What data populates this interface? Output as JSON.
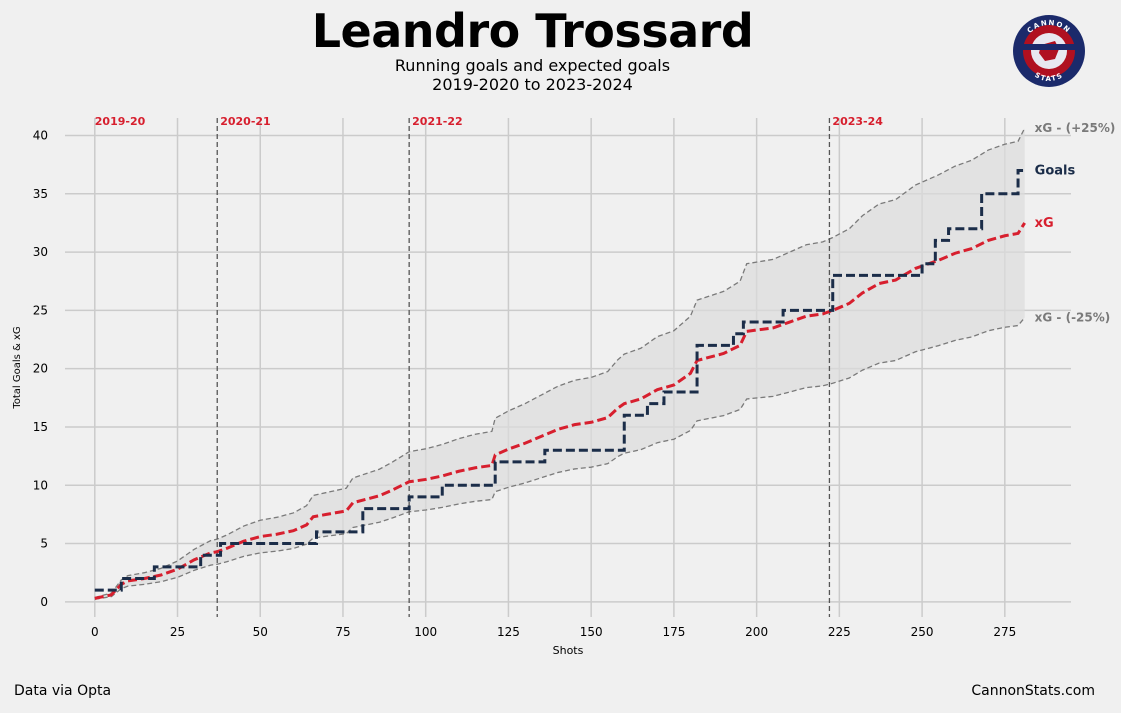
{
  "header": {
    "title": "Leandro Trossard",
    "subtitle_line1": "Running goals and expected goals",
    "subtitle_line2": "2019-2020 to 2023-2024"
  },
  "logo": {
    "top_text": "CANNON",
    "bottom_text": "STATS",
    "colors": {
      "ring": "#1b2a6b",
      "inner": "#b01020",
      "badge": "#e8e8f0"
    }
  },
  "footer": {
    "left": "Data via Opta",
    "right": "CannonStats.com"
  },
  "colors": {
    "goals": "#1b2d49",
    "xg": "#d71f2e",
    "band": "#dcdcdc",
    "band_line": "#7a7a7a",
    "season": "#d71f2e",
    "grid": "#cbcbcb",
    "background": "#f0f0f0"
  },
  "chart_data": {
    "type": "line",
    "xlabel": "Shots",
    "ylabel": "Total Goals & xG",
    "xlim": [
      -9,
      295
    ],
    "ylim": [
      -1.3,
      41.5
    ],
    "xticks": [
      0,
      25,
      50,
      75,
      100,
      125,
      150,
      175,
      200,
      225,
      250,
      275
    ],
    "yticks": [
      0,
      5,
      10,
      15,
      20,
      25,
      30,
      35,
      40
    ],
    "grid": true,
    "seasons": [
      {
        "label": "2019-20",
        "start_shot": 0,
        "divider": false
      },
      {
        "label": "2020-21",
        "start_shot": 37,
        "divider": true
      },
      {
        "label": "2021-22",
        "start_shot": 95,
        "divider": true
      },
      {
        "label": "2023-24",
        "start_shot": 222,
        "divider": true
      }
    ],
    "series": [
      {
        "name": "Goals",
        "step": true,
        "points": [
          [
            0,
            1
          ],
          [
            6,
            1
          ],
          [
            8,
            2
          ],
          [
            14,
            2
          ],
          [
            18,
            3
          ],
          [
            29,
            3
          ],
          [
            32,
            4
          ],
          [
            37,
            4
          ],
          [
            38,
            5
          ],
          [
            66,
            5
          ],
          [
            67,
            6
          ],
          [
            77,
            6
          ],
          [
            81,
            8
          ],
          [
            94,
            8
          ],
          [
            95,
            9
          ],
          [
            104,
            9
          ],
          [
            105,
            10
          ],
          [
            120,
            10
          ],
          [
            121,
            12
          ],
          [
            135,
            12
          ],
          [
            136,
            13
          ],
          [
            159,
            13
          ],
          [
            160,
            16
          ],
          [
            167,
            17
          ],
          [
            172,
            18
          ],
          [
            180,
            18
          ],
          [
            182,
            22
          ],
          [
            190,
            22
          ],
          [
            193,
            23
          ],
          [
            196,
            24
          ],
          [
            206,
            24
          ],
          [
            208,
            25
          ],
          [
            221,
            25
          ],
          [
            223,
            28
          ],
          [
            248,
            28
          ],
          [
            250,
            29
          ],
          [
            254,
            31
          ],
          [
            258,
            32
          ],
          [
            265,
            32
          ],
          [
            268,
            35
          ],
          [
            278,
            35
          ],
          [
            279,
            37
          ],
          [
            281,
            37
          ]
        ]
      },
      {
        "name": "xG",
        "step": false,
        "points": [
          [
            0,
            0.3
          ],
          [
            5,
            0.6
          ],
          [
            8,
            1.5
          ],
          [
            10,
            1.8
          ],
          [
            15,
            2.0
          ],
          [
            20,
            2.3
          ],
          [
            25,
            2.8
          ],
          [
            30,
            3.6
          ],
          [
            35,
            4.2
          ],
          [
            37,
            4.3
          ],
          [
            40,
            4.6
          ],
          [
            45,
            5.2
          ],
          [
            50,
            5.6
          ],
          [
            55,
            5.8
          ],
          [
            60,
            6.1
          ],
          [
            64,
            6.6
          ],
          [
            66,
            7.3
          ],
          [
            70,
            7.5
          ],
          [
            76,
            7.8
          ],
          [
            78,
            8.5
          ],
          [
            82,
            8.8
          ],
          [
            86,
            9.1
          ],
          [
            90,
            9.6
          ],
          [
            95,
            10.3
          ],
          [
            100,
            10.5
          ],
          [
            105,
            10.8
          ],
          [
            110,
            11.2
          ],
          [
            115,
            11.5
          ],
          [
            120,
            11.7
          ],
          [
            121,
            12.6
          ],
          [
            125,
            13.1
          ],
          [
            130,
            13.6
          ],
          [
            135,
            14.2
          ],
          [
            140,
            14.8
          ],
          [
            145,
            15.2
          ],
          [
            150,
            15.4
          ],
          [
            155,
            15.8
          ],
          [
            158,
            16.6
          ],
          [
            160,
            17.0
          ],
          [
            165,
            17.4
          ],
          [
            170,
            18.2
          ],
          [
            175,
            18.6
          ],
          [
            180,
            19.6
          ],
          [
            182,
            20.7
          ],
          [
            190,
            21.3
          ],
          [
            195,
            22.0
          ],
          [
            197,
            23.2
          ],
          [
            205,
            23.5
          ],
          [
            210,
            24.0
          ],
          [
            215,
            24.5
          ],
          [
            220,
            24.7
          ],
          [
            223,
            25.0
          ],
          [
            228,
            25.6
          ],
          [
            232,
            26.5
          ],
          [
            237,
            27.3
          ],
          [
            242,
            27.6
          ],
          [
            248,
            28.6
          ],
          [
            255,
            29.3
          ],
          [
            260,
            29.9
          ],
          [
            265,
            30.3
          ],
          [
            270,
            31.0
          ],
          [
            275,
            31.4
          ],
          [
            279,
            31.6
          ],
          [
            281,
            32.5
          ]
        ]
      },
      {
        "name": "xG - (+25%)",
        "step": false,
        "upper_band": true
      },
      {
        "name": "xG - (-25%)",
        "step": false,
        "lower_band": true
      }
    ],
    "legend_labels": {
      "upper": "xG - (+25%)",
      "goals": "Goals",
      "xg": "xG",
      "lower": "xG - (-25%)"
    },
    "band_factor": 0.25
  }
}
